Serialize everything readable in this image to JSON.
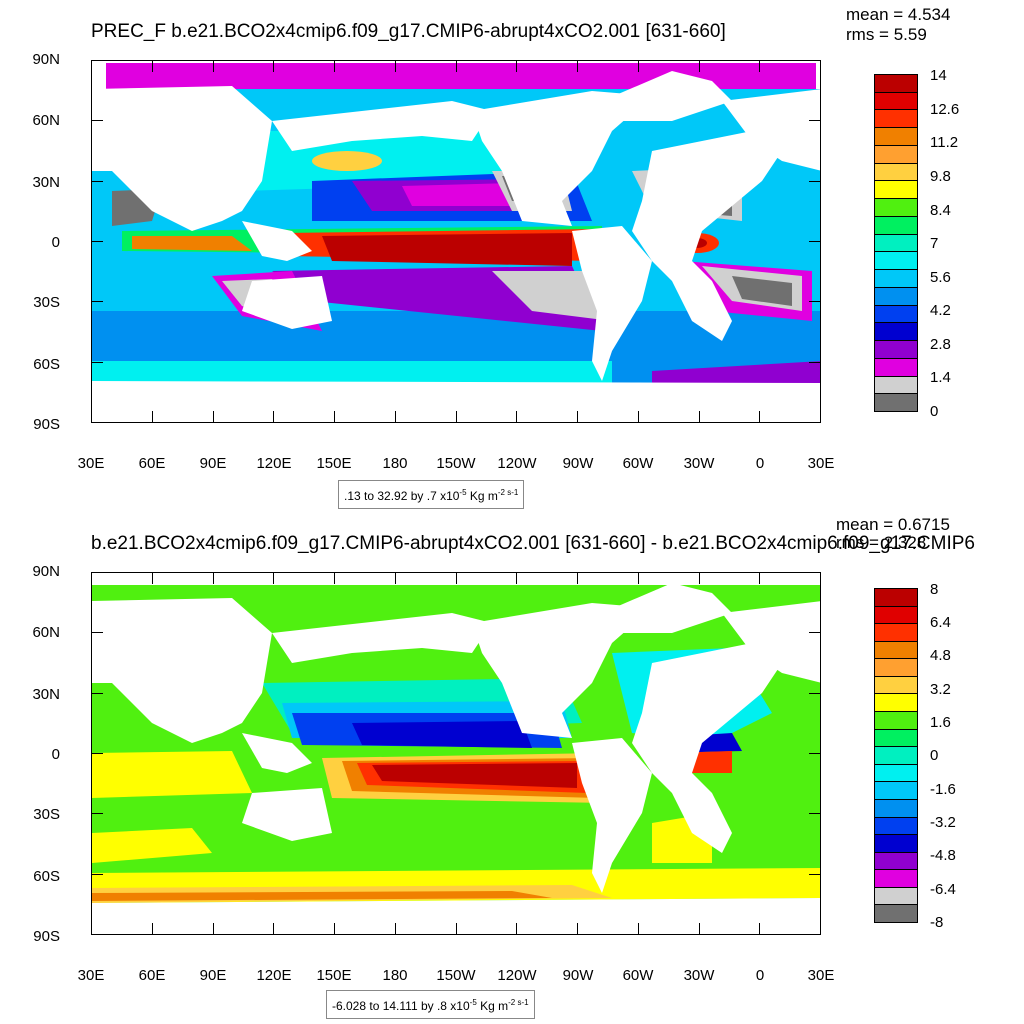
{
  "panels": [
    {
      "title": "PREC_F b.e21.BCO2x4cmip6.f09_g17.CMIP6-abrupt4xCO2.001 [631-660]",
      "mean_label": "mean = 4.534",
      "rms_label": "rms = 5.59",
      "range_text": ".13 to 32.92 by .7 x10",
      "range_exp": "-5",
      "range_units": " Kg m",
      "range_units_exp": "-2 s-1",
      "y_ticks": [
        "90N",
        "60N",
        "30N",
        "0",
        "30S",
        "60S",
        "90S"
      ],
      "x_ticks": [
        "30E",
        "60E",
        "90E",
        "120E",
        "150E",
        "180",
        "150W",
        "120W",
        "90W",
        "60W",
        "30W",
        "0",
        "30E"
      ],
      "colorbar_labels": [
        "14",
        "12.6",
        "11.2",
        "9.8",
        "8.4",
        "7",
        "5.6",
        "4.2",
        "2.8",
        "1.4",
        "0"
      ],
      "colorbar_colors": [
        "#bb0000",
        "#e00000",
        "#ff3000",
        "#f08000",
        "#ffa030",
        "#ffd040",
        "#ffff00",
        "#50f010",
        "#00f060",
        "#00f0c0",
        "#00f0f0",
        "#00c8f8",
        "#0090f0",
        "#0040f0",
        "#0000d0",
        "#9000d0",
        "#e000e0",
        "#d0d0d0",
        "#707070"
      ]
    },
    {
      "title": "b.e21.BCO2x4cmip6.f09_g17.CMIP6-abrupt4xCO2.001 [631-660] - b.e21.BCO2x4cmip6.f09_g17.CMIP6",
      "mean_label": "mean = 0.6715",
      "rms_label": "rms = 2.328",
      "range_text": "-6.028 to 14.111 by .8 x10",
      "range_exp": "-5",
      "range_units": " Kg m",
      "range_units_exp": "-2 s-1",
      "y_ticks": [
        "90N",
        "60N",
        "30N",
        "0",
        "30S",
        "60S",
        "90S"
      ],
      "x_ticks": [
        "30E",
        "60E",
        "90E",
        "120E",
        "150E",
        "180",
        "150W",
        "120W",
        "90W",
        "60W",
        "30W",
        "0",
        "30E"
      ],
      "colorbar_labels": [
        "8",
        "6.4",
        "4.8",
        "3.2",
        "1.6",
        "0",
        "-1.6",
        "-3.2",
        "-4.8",
        "-6.4",
        "-8"
      ],
      "colorbar_colors": [
        "#bb0000",
        "#e00000",
        "#ff3000",
        "#f08000",
        "#ffa030",
        "#ffd040",
        "#ffff00",
        "#50f010",
        "#00f060",
        "#00f0c0",
        "#00f0f0",
        "#00c8f8",
        "#0090f0",
        "#0040f0",
        "#0000d0",
        "#9000d0",
        "#e000e0",
        "#d0d0d0",
        "#707070"
      ]
    }
  ]
}
